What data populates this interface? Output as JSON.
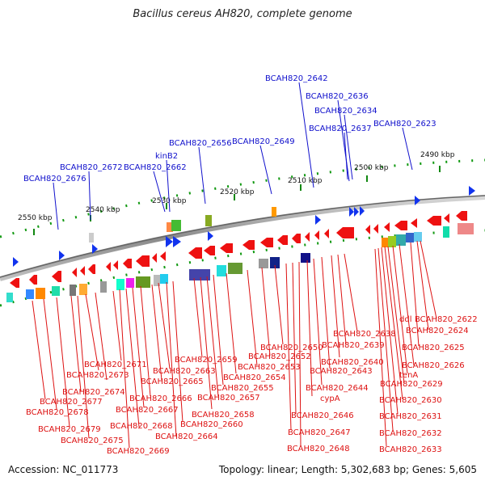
{
  "title": "Bacillus cereus AH820, complete genome",
  "accession": "Accession: NC_011773",
  "topology": "Topology: linear; Length: 5,302,683 bp; Genes: 5,605",
  "ticks": [
    "2550 kbp",
    "2540 kbp",
    "2530 kbp",
    "2520 kbp",
    "2510 kbp",
    "2500 kbp",
    "2490 kbp"
  ],
  "upper_labels": [
    "BCAH820_2642",
    "BCAH820_2636",
    "BCAH820_2634",
    "BCAH820_2637",
    "BCAH820_2623",
    "BCAH820_2656",
    "BCAH820_2649",
    "kinB2",
    "BCAH820_2672",
    "BCAH820_2662",
    "BCAH820_2676"
  ],
  "lower_labels": [
    "ddl",
    "BCAH820_2622",
    "BCAH820_2624",
    "BCAH820_2638",
    "BCAH820_2639",
    "BCAH820_2625",
    "BCAH820_2650",
    "BCAH820_2652",
    "BCAH820_2640",
    "BCAH820_2626",
    "BCAH820_2671",
    "BCAH820_2659",
    "BCAH820_2653",
    "BCAH820_2643",
    "tenA",
    "BCAH820_2673",
    "BCAH820_2663",
    "BCAH820_2654",
    "BCAH820_2665",
    "BCAH820_2629",
    "BCAH820_2655",
    "BCAH820_2644",
    "BCAH820_2674",
    "BCAH820_2657",
    "cypA",
    "BCAH820_2666",
    "BCAH820_2630",
    "BCAH820_2677",
    "BCAH820_2667",
    "BCAH820_2678",
    "BCAH820_2658",
    "BCAH820_2646",
    "BCAH820_2631",
    "BCAH820_2660",
    "BCAH820_2668",
    "BCAH820_2679",
    "BCAH820_2647",
    "BCAH820_2632",
    "BCAH820_2675",
    "BCAH820_2664",
    "BCAH820_2648",
    "BCAH820_2669",
    "BCAH820_2633"
  ],
  "colors": {
    "forward_label": "#1010cc",
    "reverse_label": "#dd1111",
    "gene_red": "#ee1111",
    "gene_blue": "#1133ee",
    "tick_green": "#118811",
    "backbone": "#888888"
  }
}
